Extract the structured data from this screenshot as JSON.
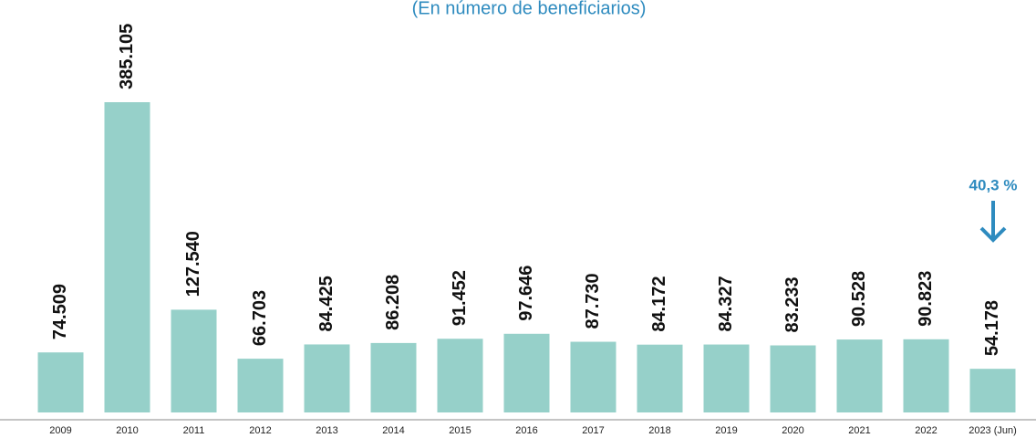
{
  "chart_data": {
    "type": "bar",
    "subtitle": "(En número de beneficiarios)",
    "categories": [
      "2009",
      "2010",
      "2011",
      "2012",
      "2013",
      "2014",
      "2015",
      "2016",
      "2017",
      "2018",
      "2019",
      "2020",
      "2021",
      "2022",
      "2023 (Jun)"
    ],
    "values": [
      74509,
      385105,
      127540,
      66703,
      84425,
      86208,
      91452,
      97646,
      87730,
      84172,
      84327,
      83233,
      90528,
      90823,
      54178
    ],
    "value_labels": [
      "74.509",
      "385.105",
      "127.540",
      "66.703",
      "84.425",
      "86.208",
      "91.452",
      "97.646",
      "87.730",
      "84.172",
      "84.327",
      "83.233",
      "90.528",
      "90.823",
      "54.178"
    ],
    "color": "#96d0c9",
    "annotation": "40,3 %"
  }
}
